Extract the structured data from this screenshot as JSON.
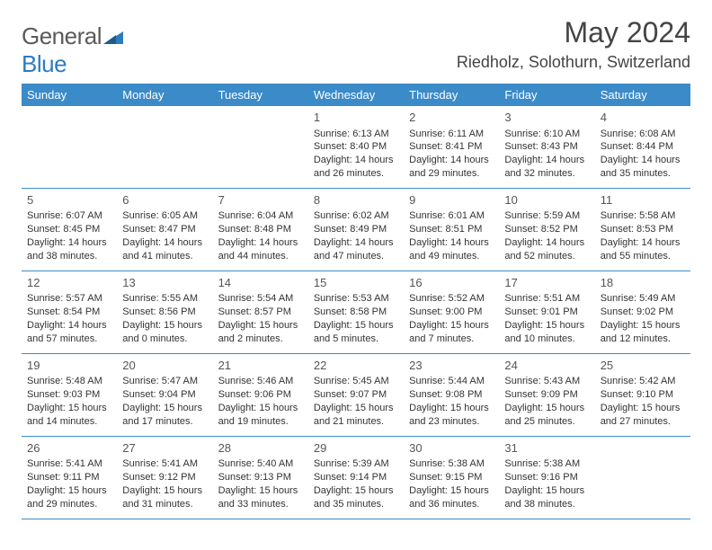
{
  "brand": {
    "part1": "General",
    "part2": "Blue"
  },
  "title": "May 2024",
  "location": "Riedholz, Solothurn, Switzerland",
  "colors": {
    "header_bg": "#3b8bc9",
    "header_text": "#ffffff",
    "border": "#3b8bc9",
    "text": "#333333",
    "title_text": "#444444",
    "logo_gray": "#5a5a5a",
    "logo_blue": "#2d7bc0"
  },
  "weekdays": [
    "Sunday",
    "Monday",
    "Tuesday",
    "Wednesday",
    "Thursday",
    "Friday",
    "Saturday"
  ],
  "weeks": [
    [
      null,
      null,
      null,
      {
        "n": "1",
        "sr": "6:13 AM",
        "ss": "8:40 PM",
        "dl": "14 hours and 26 minutes."
      },
      {
        "n": "2",
        "sr": "6:11 AM",
        "ss": "8:41 PM",
        "dl": "14 hours and 29 minutes."
      },
      {
        "n": "3",
        "sr": "6:10 AM",
        "ss": "8:43 PM",
        "dl": "14 hours and 32 minutes."
      },
      {
        "n": "4",
        "sr": "6:08 AM",
        "ss": "8:44 PM",
        "dl": "14 hours and 35 minutes."
      }
    ],
    [
      {
        "n": "5",
        "sr": "6:07 AM",
        "ss": "8:45 PM",
        "dl": "14 hours and 38 minutes."
      },
      {
        "n": "6",
        "sr": "6:05 AM",
        "ss": "8:47 PM",
        "dl": "14 hours and 41 minutes."
      },
      {
        "n": "7",
        "sr": "6:04 AM",
        "ss": "8:48 PM",
        "dl": "14 hours and 44 minutes."
      },
      {
        "n": "8",
        "sr": "6:02 AM",
        "ss": "8:49 PM",
        "dl": "14 hours and 47 minutes."
      },
      {
        "n": "9",
        "sr": "6:01 AM",
        "ss": "8:51 PM",
        "dl": "14 hours and 49 minutes."
      },
      {
        "n": "10",
        "sr": "5:59 AM",
        "ss": "8:52 PM",
        "dl": "14 hours and 52 minutes."
      },
      {
        "n": "11",
        "sr": "5:58 AM",
        "ss": "8:53 PM",
        "dl": "14 hours and 55 minutes."
      }
    ],
    [
      {
        "n": "12",
        "sr": "5:57 AM",
        "ss": "8:54 PM",
        "dl": "14 hours and 57 minutes."
      },
      {
        "n": "13",
        "sr": "5:55 AM",
        "ss": "8:56 PM",
        "dl": "15 hours and 0 minutes."
      },
      {
        "n": "14",
        "sr": "5:54 AM",
        "ss": "8:57 PM",
        "dl": "15 hours and 2 minutes."
      },
      {
        "n": "15",
        "sr": "5:53 AM",
        "ss": "8:58 PM",
        "dl": "15 hours and 5 minutes."
      },
      {
        "n": "16",
        "sr": "5:52 AM",
        "ss": "9:00 PM",
        "dl": "15 hours and 7 minutes."
      },
      {
        "n": "17",
        "sr": "5:51 AM",
        "ss": "9:01 PM",
        "dl": "15 hours and 10 minutes."
      },
      {
        "n": "18",
        "sr": "5:49 AM",
        "ss": "9:02 PM",
        "dl": "15 hours and 12 minutes."
      }
    ],
    [
      {
        "n": "19",
        "sr": "5:48 AM",
        "ss": "9:03 PM",
        "dl": "15 hours and 14 minutes."
      },
      {
        "n": "20",
        "sr": "5:47 AM",
        "ss": "9:04 PM",
        "dl": "15 hours and 17 minutes."
      },
      {
        "n": "21",
        "sr": "5:46 AM",
        "ss": "9:06 PM",
        "dl": "15 hours and 19 minutes."
      },
      {
        "n": "22",
        "sr": "5:45 AM",
        "ss": "9:07 PM",
        "dl": "15 hours and 21 minutes."
      },
      {
        "n": "23",
        "sr": "5:44 AM",
        "ss": "9:08 PM",
        "dl": "15 hours and 23 minutes."
      },
      {
        "n": "24",
        "sr": "5:43 AM",
        "ss": "9:09 PM",
        "dl": "15 hours and 25 minutes."
      },
      {
        "n": "25",
        "sr": "5:42 AM",
        "ss": "9:10 PM",
        "dl": "15 hours and 27 minutes."
      }
    ],
    [
      {
        "n": "26",
        "sr": "5:41 AM",
        "ss": "9:11 PM",
        "dl": "15 hours and 29 minutes."
      },
      {
        "n": "27",
        "sr": "5:41 AM",
        "ss": "9:12 PM",
        "dl": "15 hours and 31 minutes."
      },
      {
        "n": "28",
        "sr": "5:40 AM",
        "ss": "9:13 PM",
        "dl": "15 hours and 33 minutes."
      },
      {
        "n": "29",
        "sr": "5:39 AM",
        "ss": "9:14 PM",
        "dl": "15 hours and 35 minutes."
      },
      {
        "n": "30",
        "sr": "5:38 AM",
        "ss": "9:15 PM",
        "dl": "15 hours and 36 minutes."
      },
      {
        "n": "31",
        "sr": "5:38 AM",
        "ss": "9:16 PM",
        "dl": "15 hours and 38 minutes."
      },
      null
    ]
  ],
  "labels": {
    "sunrise": "Sunrise:",
    "sunset": "Sunset:",
    "daylight": "Daylight:"
  }
}
